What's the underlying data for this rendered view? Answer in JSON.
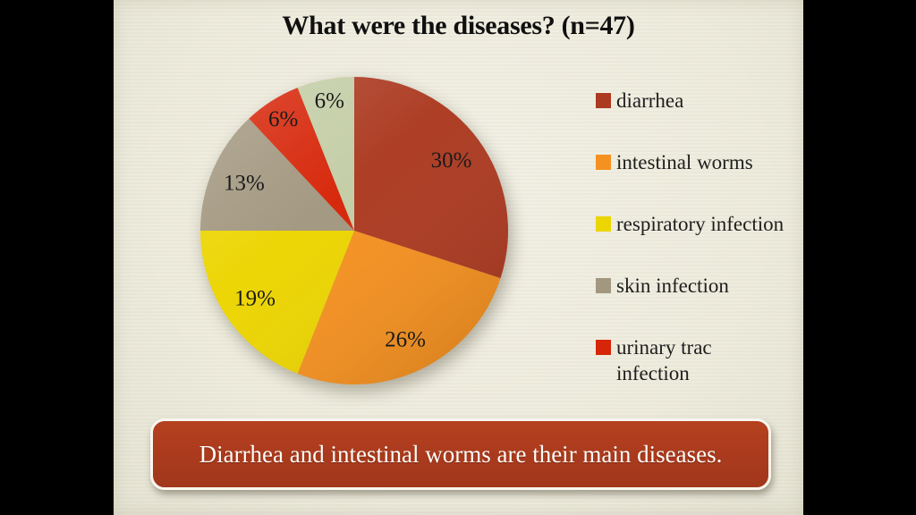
{
  "slide": {
    "title": "What were the diseases? (n=47)",
    "banner_text": "Diarrhea and intestinal worms are their main diseases."
  },
  "chart_data": {
    "type": "pie",
    "title": "What were the diseases? (n=47)",
    "legend_position": "right",
    "direction": "clockwise",
    "start_angle_deg": 0,
    "slices": [
      {
        "label": "diarrhea",
        "value": 30,
        "percent_label": "30%",
        "color": "#AC3A21",
        "legend": true
      },
      {
        "label": "intestinal worms",
        "value": 26,
        "percent_label": "26%",
        "color": "#F59120",
        "legend": true
      },
      {
        "label": "respiratory infection",
        "value": 19,
        "percent_label": "19%",
        "color": "#ECD501",
        "legend": true
      },
      {
        "label": "skin infection",
        "value": 13,
        "percent_label": "13%",
        "color": "#A2977F",
        "legend": true
      },
      {
        "label": "urinary trac infection",
        "value": 6,
        "percent_label": "6%",
        "color": "#D62508",
        "legend": true
      },
      {
        "label": "",
        "value": 6,
        "percent_label": "6%",
        "color": "#C3CDA5",
        "legend": false
      }
    ]
  }
}
